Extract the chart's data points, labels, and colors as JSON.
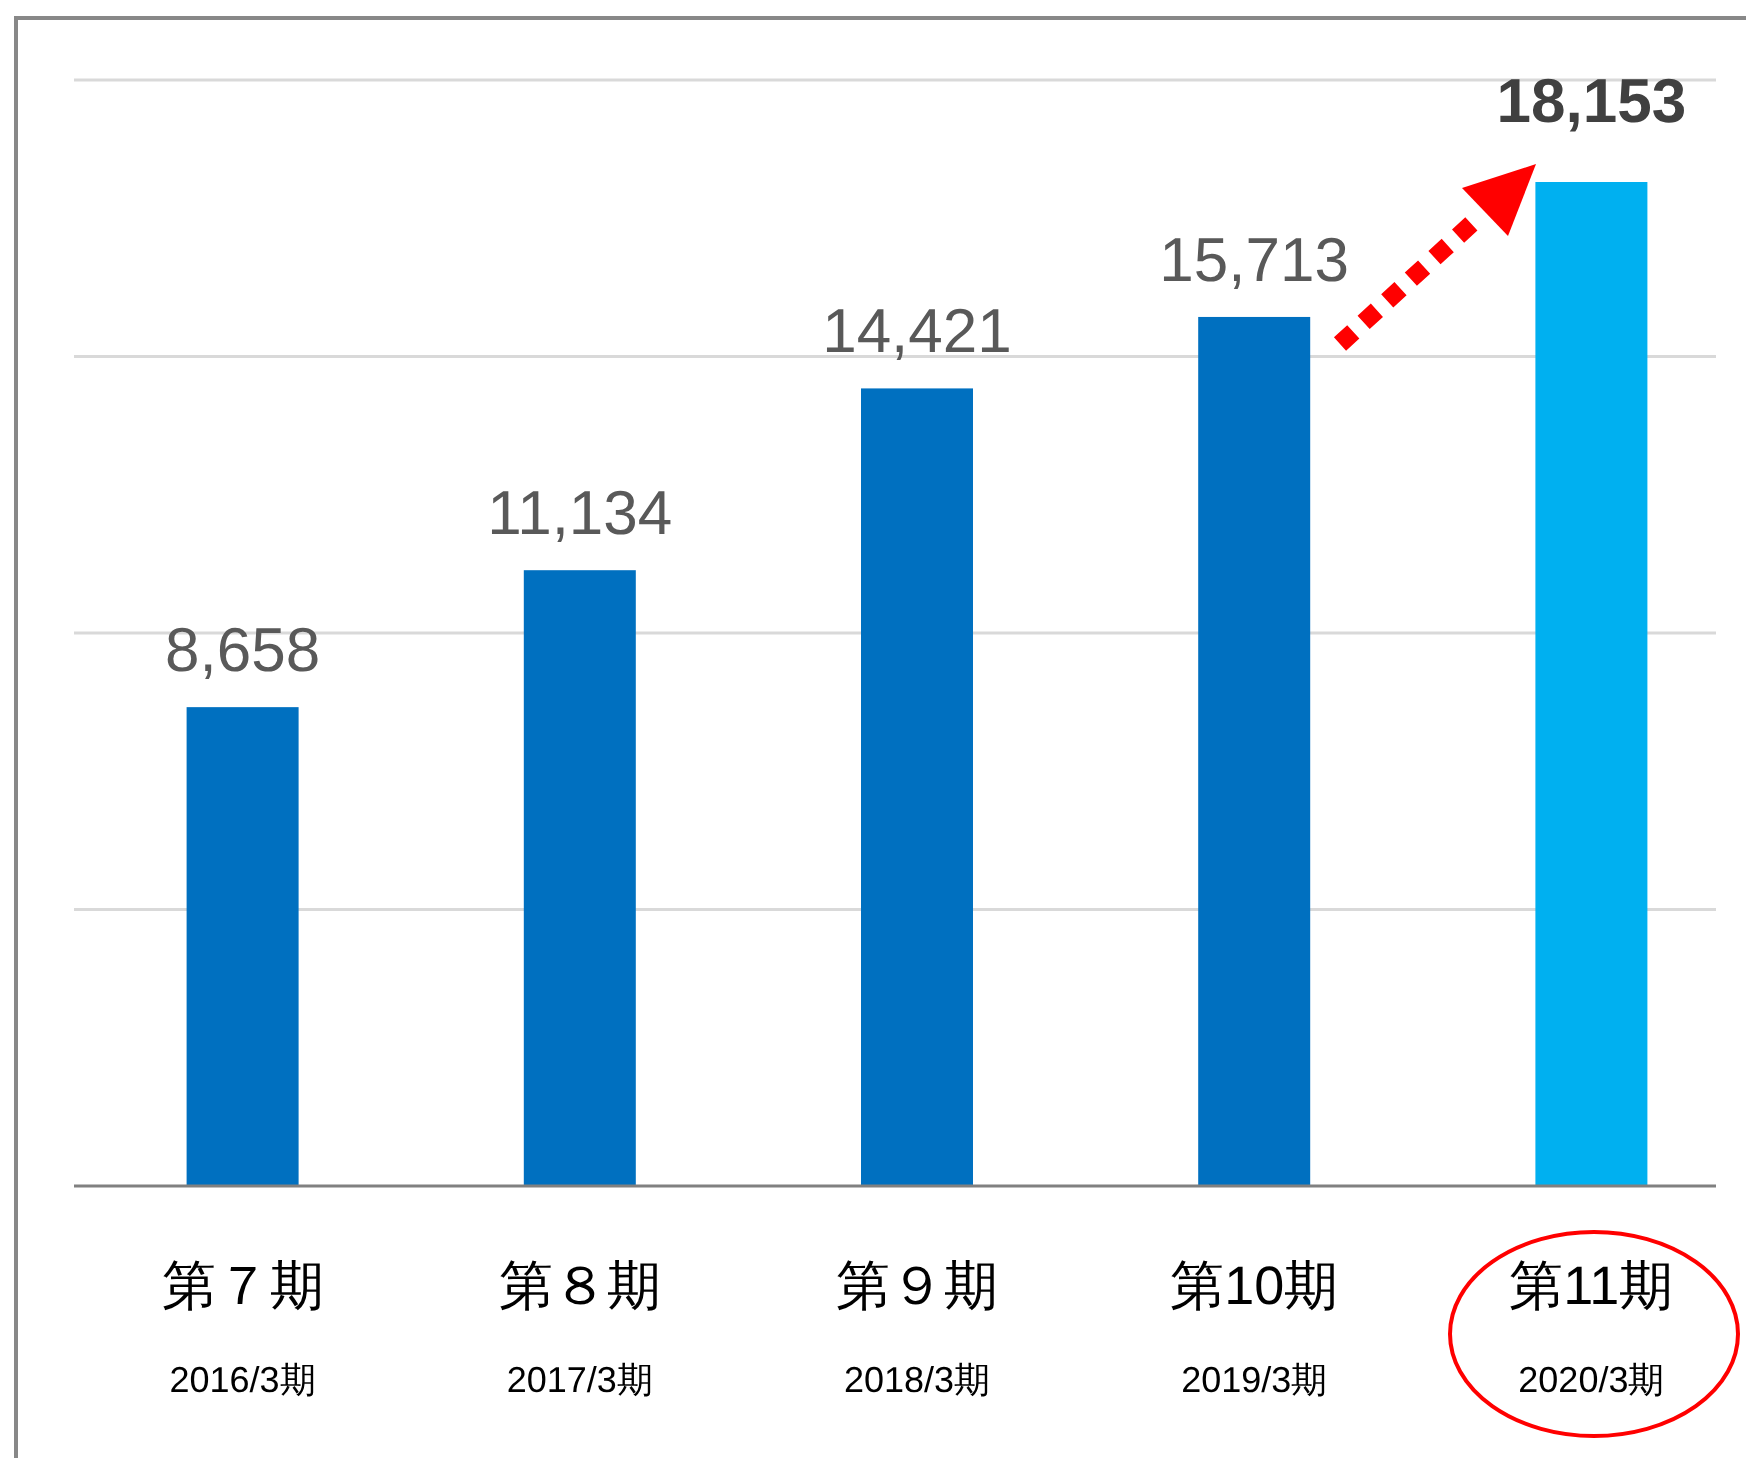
{
  "chart_data": {
    "type": "bar",
    "categories": [
      "第７期\n2016/3期",
      "第８期\n2017/3期",
      "第９期\n2018/3期",
      "第10期\n2019/3期",
      "第11期\n2020/3期"
    ],
    "values": [
      8658,
      11134,
      14421,
      15713,
      18153
    ],
    "value_labels": [
      "8,658",
      "11,134",
      "14,421",
      "15,713",
      "18,153"
    ],
    "colors": [
      "#0070c0",
      "#0070c0",
      "#0070c0",
      "#0070c0",
      "#00b0f0"
    ],
    "grid": "y",
    "tick_labels": "x"
  }
}
